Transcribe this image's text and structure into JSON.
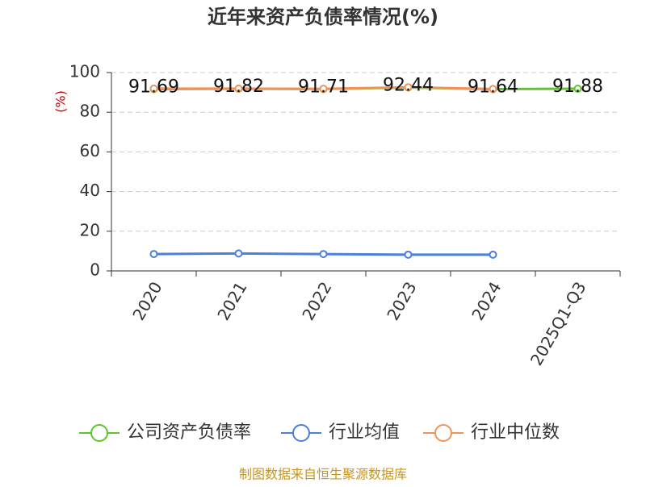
{
  "chart_data": {
    "type": "line",
    "title": "近年来资产负债率情况(%)",
    "y_label": "(%)",
    "categories": [
      "2020",
      "2021",
      "2022",
      "2023",
      "2024",
      "2025Q1-Q3"
    ],
    "series": [
      {
        "name": "公司资产负债率",
        "color": "#5cc62b",
        "values": [
          91.69,
          91.82,
          91.71,
          92.44,
          91.64,
          91.88
        ],
        "show_labels": true
      },
      {
        "name": "行业均值",
        "color": "#4b7fdb",
        "values": [
          8.5,
          8.8,
          8.5,
          8.2,
          8.2,
          null
        ]
      },
      {
        "name": "行业中位数",
        "color": "#f0935a",
        "values": [
          91.9,
          91.9,
          91.8,
          92.6,
          91.7,
          null
        ]
      }
    ],
    "ylim": [
      0,
      100
    ],
    "yticks": [
      0,
      20,
      40,
      60,
      80,
      100
    ],
    "grid": true,
    "source": "制图数据来自恒生聚源数据库"
  }
}
